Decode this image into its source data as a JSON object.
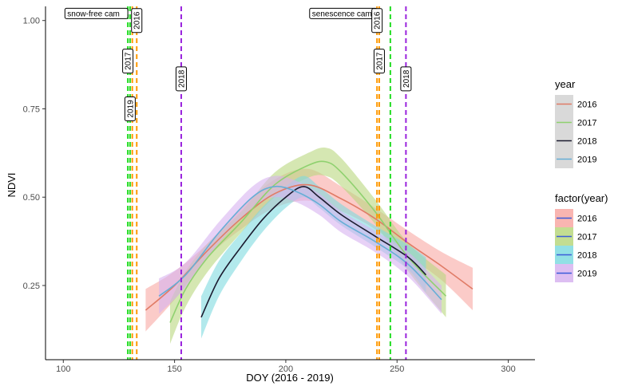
{
  "chart_data": {
    "type": "line",
    "title": "",
    "xlabel": "DOY (2016 - 2019)",
    "ylabel": "NDVI",
    "xlim": [
      92,
      312
    ],
    "ylim": [
      0.04,
      1.04
    ],
    "xticks": [
      100,
      150,
      200,
      250,
      300
    ],
    "yticks": [
      0.25,
      0.5,
      0.75,
      1.0
    ],
    "xtick_labels": [
      "100",
      "150",
      "200",
      "250",
      "300"
    ],
    "ytick_labels": [
      "0.25",
      "0.50",
      "0.75",
      "1.00"
    ],
    "grid": false,
    "legend_placement": "right",
    "legends": [
      {
        "title": "year",
        "entries": [
          {
            "label": "2016",
            "color": "#e07b66"
          },
          {
            "label": "2017",
            "color": "#8fd16f"
          },
          {
            "label": "2018",
            "color": "#1b1b2f"
          },
          {
            "label": "2019",
            "color": "#66aed6"
          }
        ]
      },
      {
        "title": "factor(year)",
        "entries": [
          {
            "label": "2016",
            "fill": "#f8a8a3",
            "line": "#3b5bd9"
          },
          {
            "label": "2017",
            "fill": "#b9d77e",
            "line": "#3b5bd9"
          },
          {
            "label": "2018",
            "fill": "#7fdbe0",
            "line": "#3b5bd9"
          },
          {
            "label": "2019",
            "fill": "#d7b3f0",
            "line": "#3b5bd9"
          }
        ]
      }
    ],
    "series": [
      {
        "name": "2016",
        "line_color": "#e07b66",
        "band_fill": "#f8a8a3",
        "x": [
          137,
          150,
          165,
          180,
          195,
          210,
          225,
          240,
          255,
          270,
          284
        ],
        "y": [
          0.18,
          0.25,
          0.35,
          0.44,
          0.51,
          0.535,
          0.495,
          0.44,
          0.37,
          0.305,
          0.24
        ],
        "band": [
          0.06,
          0.04,
          0.02,
          0.03,
          0.04,
          0.045,
          0.035,
          0.03,
          0.035,
          0.04,
          0.06
        ]
      },
      {
        "name": "2017",
        "line_color": "#8fd16f",
        "band_fill": "#b9d77e",
        "x": [
          148,
          155,
          165,
          180,
          195,
          210,
          218,
          225,
          240,
          255,
          272
        ],
        "y": [
          0.145,
          0.24,
          0.33,
          0.43,
          0.535,
          0.59,
          0.6,
          0.57,
          0.46,
          0.33,
          0.22
        ],
        "band": [
          0.06,
          0.05,
          0.04,
          0.03,
          0.035,
          0.035,
          0.04,
          0.04,
          0.035,
          0.04,
          0.06
        ]
      },
      {
        "name": "2018",
        "line_color": "#1b1b2f",
        "band_fill": "#7fdbe0",
        "x": [
          162,
          170,
          180,
          190,
          200,
          208,
          215,
          225,
          240,
          255,
          263
        ],
        "y": [
          0.16,
          0.27,
          0.36,
          0.44,
          0.5,
          0.53,
          0.5,
          0.45,
          0.39,
          0.33,
          0.28
        ],
        "band": [
          0.06,
          0.05,
          0.04,
          0.035,
          0.03,
          0.03,
          0.03,
          0.03,
          0.03,
          0.035,
          0.05
        ]
      },
      {
        "name": "2019",
        "line_color": "#66aed6",
        "band_fill": "#d7b3f0",
        "x": [
          143,
          155,
          170,
          185,
          195,
          205,
          215,
          225,
          240,
          255,
          270
        ],
        "y": [
          0.22,
          0.28,
          0.4,
          0.5,
          0.53,
          0.515,
          0.48,
          0.43,
          0.375,
          0.31,
          0.21
        ],
        "band": [
          0.05,
          0.035,
          0.03,
          0.03,
          0.03,
          0.03,
          0.03,
          0.03,
          0.03,
          0.035,
          0.04
        ]
      }
    ],
    "vlines": [
      {
        "x": 129,
        "color": "#22dd22",
        "group": "snow-free cam",
        "label": "2017"
      },
      {
        "x": 130,
        "color": "#22dd22",
        "group": "snow-free cam",
        "label": "2019"
      },
      {
        "x": 131,
        "color": "#ff9900",
        "group": "snow-free cam",
        "label": ""
      },
      {
        "x": 133,
        "color": "#ff9900",
        "group": "snow-free cam",
        "label": "2016"
      },
      {
        "x": 153,
        "color": "#9922dd",
        "group": "snow-free cam",
        "label": "2018"
      },
      {
        "x": 241,
        "color": "#ff9900",
        "group": "senescence cam",
        "label": "2016"
      },
      {
        "x": 242,
        "color": "#ff9900",
        "group": "senescence cam",
        "label": "2017"
      },
      {
        "x": 247,
        "color": "#22dd22",
        "group": "senescence cam",
        "label": ""
      },
      {
        "x": 254,
        "color": "#9922dd",
        "group": "senescence cam",
        "label": "2018"
      }
    ],
    "annotations": [
      {
        "text": "snow-free cam",
        "x": 129,
        "y": 1.02
      },
      {
        "text": "senescence cam",
        "x": 241,
        "y": 1.02
      },
      {
        "text": "2016",
        "x": 133,
        "y": 1.0
      },
      {
        "text": "2017",
        "x": 129,
        "y": 0.885
      },
      {
        "text": "2019",
        "x": 130,
        "y": 0.75
      },
      {
        "text": "2018",
        "x": 153,
        "y": 0.835
      },
      {
        "text": "2016",
        "x": 241,
        "y": 1.0
      },
      {
        "text": "2017",
        "x": 242,
        "y": 0.885
      },
      {
        "text": "2018",
        "x": 254,
        "y": 0.835
      }
    ]
  }
}
